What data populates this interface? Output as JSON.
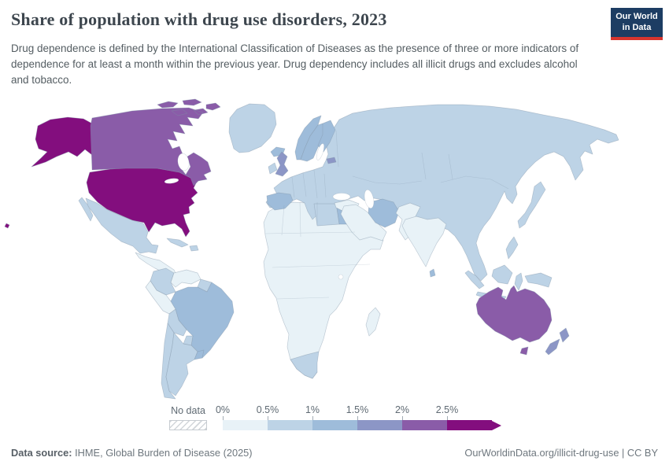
{
  "header": {
    "title": "Share of population with drug use disorders, 2023",
    "subtitle": "Drug dependence is defined by the International Classification of Diseases as the presence of three or more indicators of dependence for at least a month within the previous year. Drug dependency includes all illicit drugs and excludes alcohol and tobacco.",
    "logo": {
      "line1": "Our World",
      "line2": "in Data",
      "bg_color": "#1d3d63",
      "accent_color": "#d8352e"
    }
  },
  "legend": {
    "no_data_label": "No data",
    "tick_labels": [
      "0%",
      "0.5%",
      "1%",
      "1.5%",
      "2%",
      "2.5%"
    ],
    "bin_colors": [
      "#e8f2f7",
      "#bdd3e6",
      "#9ebcda",
      "#8c96c6",
      "#8a5ca8",
      "#830e7e"
    ]
  },
  "footer": {
    "source_label": "Data source:",
    "source_text": " IHME, Global Burden of Disease (2025)",
    "right_text": "OurWorldinData.org/illicit-drug-use | CC BY"
  },
  "chart_data": {
    "type": "choropleth",
    "title": "Share of population with drug use disorders, 2023",
    "year": 2023,
    "unit": "share of population (%)",
    "bins": [
      "0–0.5%",
      "0.5–1%",
      "1–1.5%",
      "1.5–2%",
      "2–2.5%",
      "2.5%+"
    ],
    "legend_note": "arrow on final bin indicates values above 2.5%",
    "regions": [
      {
        "id": "africa-mainland",
        "name": "Africa (most countries)",
        "bin": 0
      },
      {
        "id": "eurasia-mainland",
        "name": "Eurasia (Russia, China, mainland Europe, Indochina)",
        "bin": 1
      },
      {
        "id": "united-states",
        "name": "United States",
        "bin": 5
      },
      {
        "id": "canada",
        "name": "Canada",
        "bin": 4
      },
      {
        "id": "greenland",
        "name": "Greenland",
        "bin": 1
      },
      {
        "id": "iceland",
        "name": "Iceland",
        "bin": 2
      },
      {
        "id": "mexico",
        "name": "Mexico",
        "bin": 1
      },
      {
        "id": "central-america",
        "name": "Central America",
        "bin": 0
      },
      {
        "id": "cuba",
        "name": "Cuba",
        "bin": 1
      },
      {
        "id": "hispaniola",
        "name": "Hispaniola",
        "bin": 1
      },
      {
        "id": "colombia",
        "name": "Colombia",
        "bin": 1
      },
      {
        "id": "venezuela",
        "name": "Venezuela",
        "bin": 0
      },
      {
        "id": "guyanas",
        "name": "Guyanas",
        "bin": 1
      },
      {
        "id": "brazil",
        "name": "Brazil",
        "bin": 2
      },
      {
        "id": "peru",
        "name": "Peru",
        "bin": 0
      },
      {
        "id": "bolivia",
        "name": "Bolivia",
        "bin": 1
      },
      {
        "id": "paraguay",
        "name": "Paraguay",
        "bin": 1
      },
      {
        "id": "chile",
        "name": "Chile",
        "bin": 1
      },
      {
        "id": "argentina",
        "name": "Argentina",
        "bin": 1
      },
      {
        "id": "uruguay",
        "name": "Uruguay",
        "bin": 2
      },
      {
        "id": "egypt",
        "name": "Egypt",
        "bin": 2
      },
      {
        "id": "libya",
        "name": "Libya",
        "bin": 1
      },
      {
        "id": "south-africa",
        "name": "South Africa",
        "bin": 1
      },
      {
        "id": "madagascar",
        "name": "Madagascar",
        "bin": 0
      },
      {
        "id": "norway",
        "name": "Norway",
        "bin": 2
      },
      {
        "id": "sweden",
        "name": "Sweden",
        "bin": 2
      },
      {
        "id": "finland",
        "name": "Finland",
        "bin": 2
      },
      {
        "id": "estonia",
        "name": "Estonia",
        "bin": 3
      },
      {
        "id": "united-kingdom",
        "name": "United Kingdom",
        "bin": 3
      },
      {
        "id": "ireland",
        "name": "Ireland",
        "bin": 1
      },
      {
        "id": "iberia",
        "name": "Spain & Portugal",
        "bin": 2
      },
      {
        "id": "turkey",
        "name": "Turkey",
        "bin": 0
      },
      {
        "id": "middle-east",
        "name": "Middle East & Arabian Peninsula",
        "bin": 0
      },
      {
        "id": "iran",
        "name": "Iran",
        "bin": 2
      },
      {
        "id": "afghanistan-pakistan",
        "name": "Afghanistan & Pakistan",
        "bin": 0
      },
      {
        "id": "india",
        "name": "India",
        "bin": 0
      },
      {
        "id": "sri-lanka",
        "name": "Sri Lanka",
        "bin": 2
      },
      {
        "id": "japan",
        "name": "Japan",
        "bin": 1
      },
      {
        "id": "philippines",
        "name": "Philippines",
        "bin": 1
      },
      {
        "id": "indonesia",
        "name": "Indonesia & Malaysia",
        "bin": 1
      },
      {
        "id": "new-guinea",
        "name": "New Guinea",
        "bin": 1
      },
      {
        "id": "australia",
        "name": "Australia",
        "bin": 4
      },
      {
        "id": "new-zealand",
        "name": "New Zealand",
        "bin": 3
      }
    ]
  }
}
